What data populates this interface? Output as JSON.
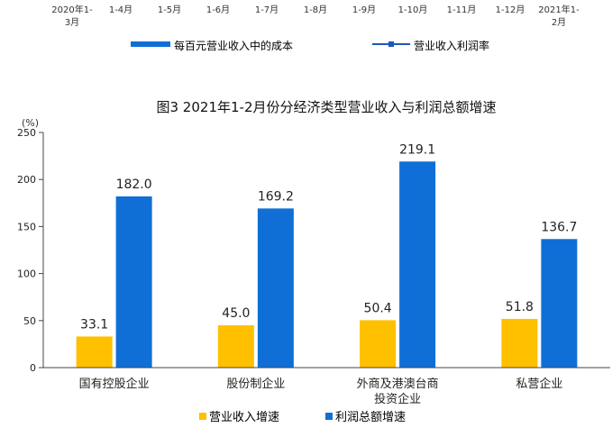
{
  "top_strip": {
    "x_labels": [
      [
        "2020年1-",
        "3月"
      ],
      [
        "1-4月"
      ],
      [
        "1-5月"
      ],
      [
        "1-6月"
      ],
      [
        "1-7月"
      ],
      [
        "1-8月"
      ],
      [
        "1-9月"
      ],
      [
        "1-10月"
      ],
      [
        "1-11月"
      ],
      [
        "1-12月"
      ],
      [
        "2021年1-",
        "2月"
      ]
    ],
    "legend": [
      {
        "label": "每百元营业收入中的成本",
        "type": "bar",
        "color": "#0f6fd6"
      },
      {
        "label": "营业收入利润率",
        "type": "line",
        "color": "#1f56b8"
      }
    ]
  },
  "chart_data": {
    "type": "bar",
    "title": "图3  2021年1-2月份分经济类型营业收入与利润总额增速",
    "ylabel": "(%)",
    "ylim": [
      0,
      250
    ],
    "yticks": [
      0,
      50,
      100,
      150,
      200,
      250
    ],
    "categories": [
      [
        "国有控股企业"
      ],
      [
        "股份制企业"
      ],
      [
        "外商及港澳台商",
        "投资企业"
      ],
      [
        "私营企业"
      ]
    ],
    "series": [
      {
        "name": "营业收入增速",
        "color": "#ffc000",
        "values": [
          33.1,
          45.0,
          50.4,
          51.8
        ],
        "labels": [
          "33.1",
          "45.0",
          "50.4",
          "51.8"
        ]
      },
      {
        "name": "利润总额增速",
        "color": "#0f6fd6",
        "values": [
          182.0,
          169.2,
          219.1,
          136.7
        ],
        "labels": [
          "182.0",
          "169.2",
          "219.1",
          "136.7"
        ]
      }
    ],
    "legend_position": "bottom"
  }
}
